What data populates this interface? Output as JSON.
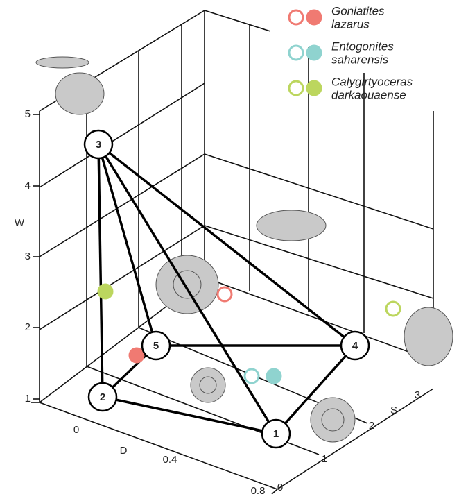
{
  "legend": [
    {
      "lines": [
        "Goniatites",
        "lazarus"
      ],
      "color": "#f07a72"
    },
    {
      "lines": [
        "Entogonites",
        "saharensis"
      ],
      "color": "#8fd3cf"
    },
    {
      "lines": [
        "Calygirtyoceras",
        "darkaouaense"
      ],
      "color": "#bcd65e"
    }
  ],
  "axes": {
    "w": {
      "label": "W",
      "ticks": [
        1,
        2,
        3,
        4,
        5
      ]
    },
    "d": {
      "label": "D",
      "ticks": [
        0,
        0.4,
        0.8
      ]
    },
    "s": {
      "label": "S",
      "ticks": [
        0,
        1,
        2,
        3
      ]
    }
  },
  "nodes": [
    {
      "label": "1"
    },
    {
      "label": "2"
    },
    {
      "label": "3"
    },
    {
      "label": "4"
    },
    {
      "label": "5"
    }
  ]
}
